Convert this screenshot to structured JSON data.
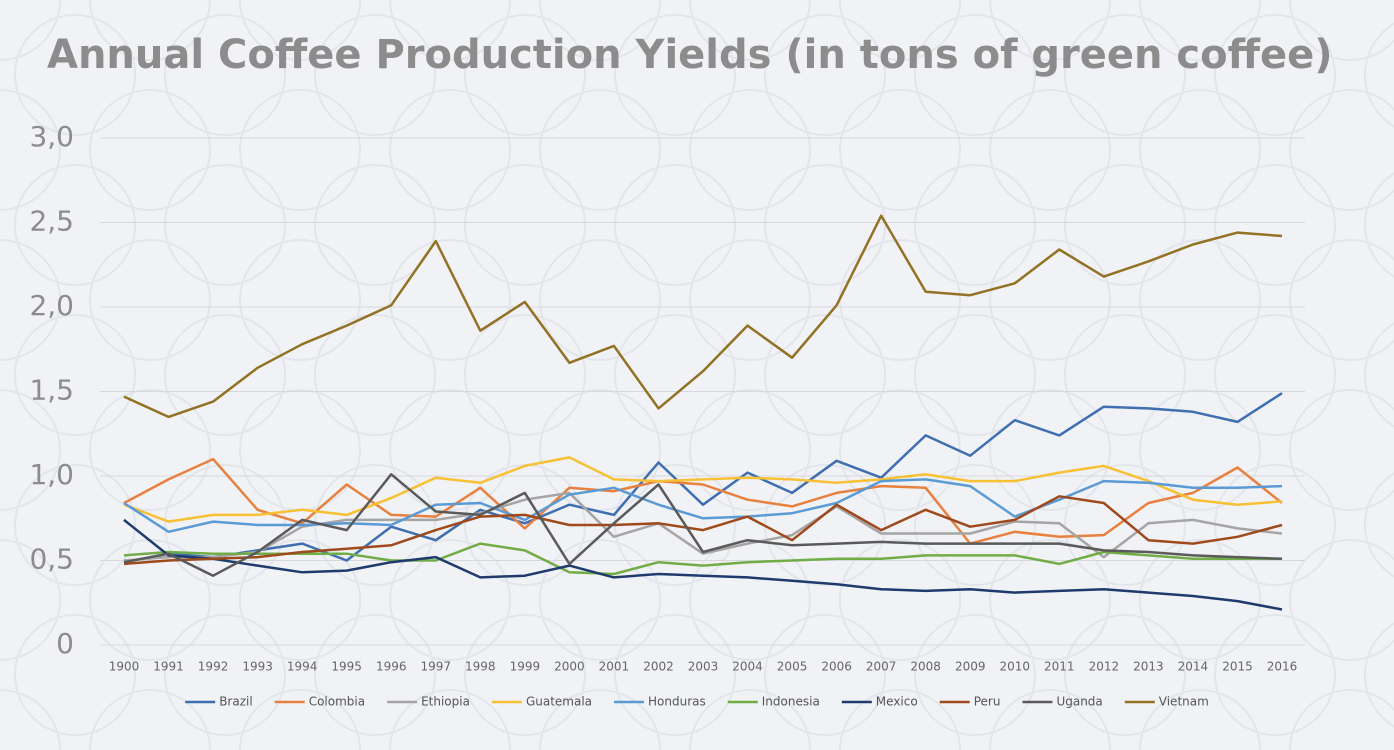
{
  "chart_data": {
    "type": "line",
    "title": "Annual Coffee Production Yields (in tons of green coffee)",
    "categories": [
      "1900",
      "1991",
      "1992",
      "1993",
      "1994",
      "1995",
      "1996",
      "1997",
      "1998",
      "1999",
      "2000",
      "2001",
      "2002",
      "2003",
      "2004",
      "2005",
      "2006",
      "2007",
      "2008",
      "2009",
      "2010",
      "2011",
      "2012",
      "2013",
      "2014",
      "2015",
      "2016"
    ],
    "ylim": [
      0,
      3
    ],
    "yticks": [
      0,
      {
        "value": 0.5,
        "label": "0,5"
      },
      {
        "value": 1,
        "label": "1,0"
      },
      {
        "value": 1.5,
        "label": "1,5"
      },
      {
        "value": 2,
        "label": "2,0"
      },
      {
        "value": 2.5,
        "label": "2,5"
      },
      {
        "value": 3,
        "label": "3,0"
      }
    ],
    "grid": true,
    "legend": "bottom",
    "series": [
      {
        "name": "Brazil",
        "color": "#3f6fb0",
        "values": [
          0.49,
          0.54,
          0.52,
          0.56,
          0.6,
          0.5,
          0.7,
          0.62,
          0.8,
          0.72,
          0.83,
          0.77,
          1.08,
          0.83,
          1.02,
          0.9,
          1.09,
          0.99,
          1.24,
          1.12,
          1.33,
          1.24,
          1.41,
          1.4,
          1.38,
          1.32,
          1.49
        ]
      },
      {
        "name": "Colombia",
        "color": "#e8803f",
        "values": [
          0.84,
          0.98,
          1.1,
          0.8,
          0.72,
          0.95,
          0.77,
          0.76,
          0.93,
          0.69,
          0.93,
          0.91,
          0.97,
          0.95,
          0.86,
          0.82,
          0.9,
          0.94,
          0.93,
          0.6,
          0.67,
          0.64,
          0.65,
          0.84,
          0.9,
          1.05,
          0.84
        ]
      },
      {
        "name": "Ethiopia",
        "color": "#a5a5a5",
        "values": [
          0.5,
          0.52,
          0.52,
          0.55,
          0.7,
          0.74,
          0.74,
          0.74,
          0.78,
          0.86,
          0.9,
          0.64,
          0.72,
          0.54,
          0.6,
          0.65,
          0.82,
          0.66,
          0.66,
          0.66,
          0.73,
          0.72,
          0.52,
          0.72,
          0.74,
          0.69,
          0.66
        ]
      },
      {
        "name": "Guatemala",
        "color": "#f7c035",
        "values": [
          0.83,
          0.73,
          0.77,
          0.77,
          0.8,
          0.77,
          0.87,
          0.99,
          0.96,
          1.06,
          1.11,
          0.98,
          0.97,
          0.98,
          0.99,
          0.98,
          0.96,
          0.98,
          1.01,
          0.97,
          0.97,
          1.02,
          1.06,
          0.97,
          0.86,
          0.83,
          0.85
        ]
      },
      {
        "name": "Honduras",
        "color": "#5b9bd5",
        "values": [
          0.84,
          0.67,
          0.73,
          0.71,
          0.71,
          0.72,
          0.71,
          0.83,
          0.84,
          0.74,
          0.89,
          0.93,
          0.83,
          0.75,
          0.76,
          0.78,
          0.84,
          0.97,
          0.98,
          0.94,
          0.76,
          0.86,
          0.97,
          0.96,
          0.93,
          0.93,
          0.94
        ]
      },
      {
        "name": "Indonesia",
        "color": "#70ad47",
        "values": [
          0.53,
          0.55,
          0.54,
          0.54,
          0.54,
          0.54,
          0.5,
          0.5,
          0.6,
          0.56,
          0.43,
          0.42,
          0.49,
          0.47,
          0.49,
          0.5,
          0.51,
          0.51,
          0.53,
          0.53,
          0.53,
          0.48,
          0.55,
          0.53,
          0.51,
          0.51,
          0.51
        ]
      },
      {
        "name": "Mexico",
        "color": "#1f3b6e",
        "values": [
          0.74,
          0.53,
          0.51,
          0.47,
          0.43,
          0.44,
          0.49,
          0.52,
          0.4,
          0.41,
          0.47,
          0.4,
          0.42,
          0.41,
          0.4,
          0.38,
          0.36,
          0.33,
          0.32,
          0.33,
          0.31,
          0.32,
          0.33,
          0.31,
          0.29,
          0.26,
          0.21
        ]
      },
      {
        "name": "Peru",
        "color": "#9e4a1c",
        "values": [
          0.48,
          0.5,
          0.51,
          0.52,
          0.55,
          0.57,
          0.59,
          0.68,
          0.76,
          0.77,
          0.71,
          0.71,
          0.72,
          0.68,
          0.76,
          0.62,
          0.83,
          0.68,
          0.8,
          0.7,
          0.74,
          0.88,
          0.84,
          0.62,
          0.6,
          0.64,
          0.71
        ]
      },
      {
        "name": "Uganda",
        "color": "#5a5a5a",
        "values": [
          0.49,
          0.54,
          0.41,
          0.55,
          0.74,
          0.68,
          1.01,
          0.79,
          0.77,
          0.9,
          0.48,
          0.72,
          0.95,
          0.55,
          0.62,
          0.59,
          0.6,
          0.61,
          0.6,
          0.6,
          0.6,
          0.6,
          0.56,
          0.55,
          0.53,
          0.52,
          0.51
        ]
      },
      {
        "name": "Vietnam",
        "color": "#927224",
        "values": [
          1.47,
          1.35,
          1.44,
          1.64,
          1.78,
          1.89,
          2.01,
          2.39,
          1.86,
          2.03,
          1.67,
          1.77,
          1.4,
          1.62,
          1.89,
          1.7,
          2.01,
          2.54,
          2.09,
          2.07,
          2.14,
          2.34,
          2.18,
          2.27,
          2.37,
          2.44,
          2.42
        ]
      }
    ]
  }
}
